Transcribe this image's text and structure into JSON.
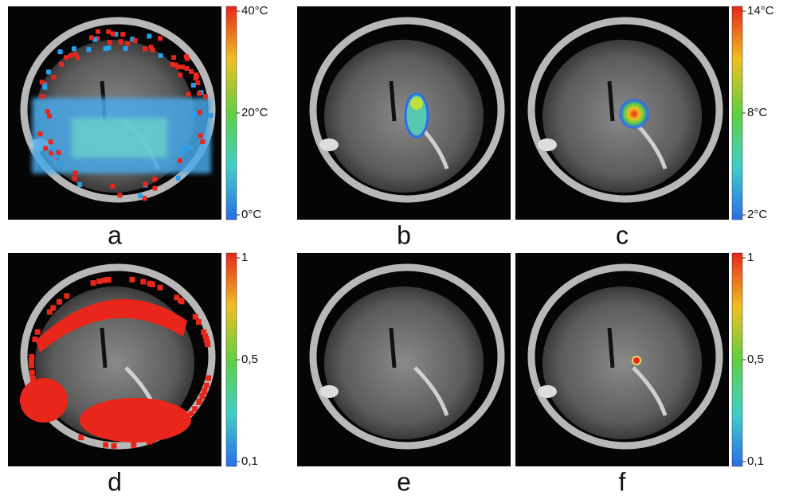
{
  "panels": [
    {
      "label": "a"
    },
    {
      "label": "b"
    },
    {
      "label": "c"
    },
    {
      "label": "d"
    },
    {
      "label": "e"
    },
    {
      "label": "f"
    }
  ],
  "colorbars": [
    {
      "ticks": [
        "40°C",
        "20°C",
        "0°C"
      ]
    },
    {
      "ticks": [
        "14°C",
        "8°C",
        "2°C"
      ]
    },
    {
      "ticks": [
        "1",
        "0,5",
        "0,1"
      ]
    },
    {
      "ticks": [
        "1",
        "0,5",
        "0,1"
      ]
    }
  ]
}
